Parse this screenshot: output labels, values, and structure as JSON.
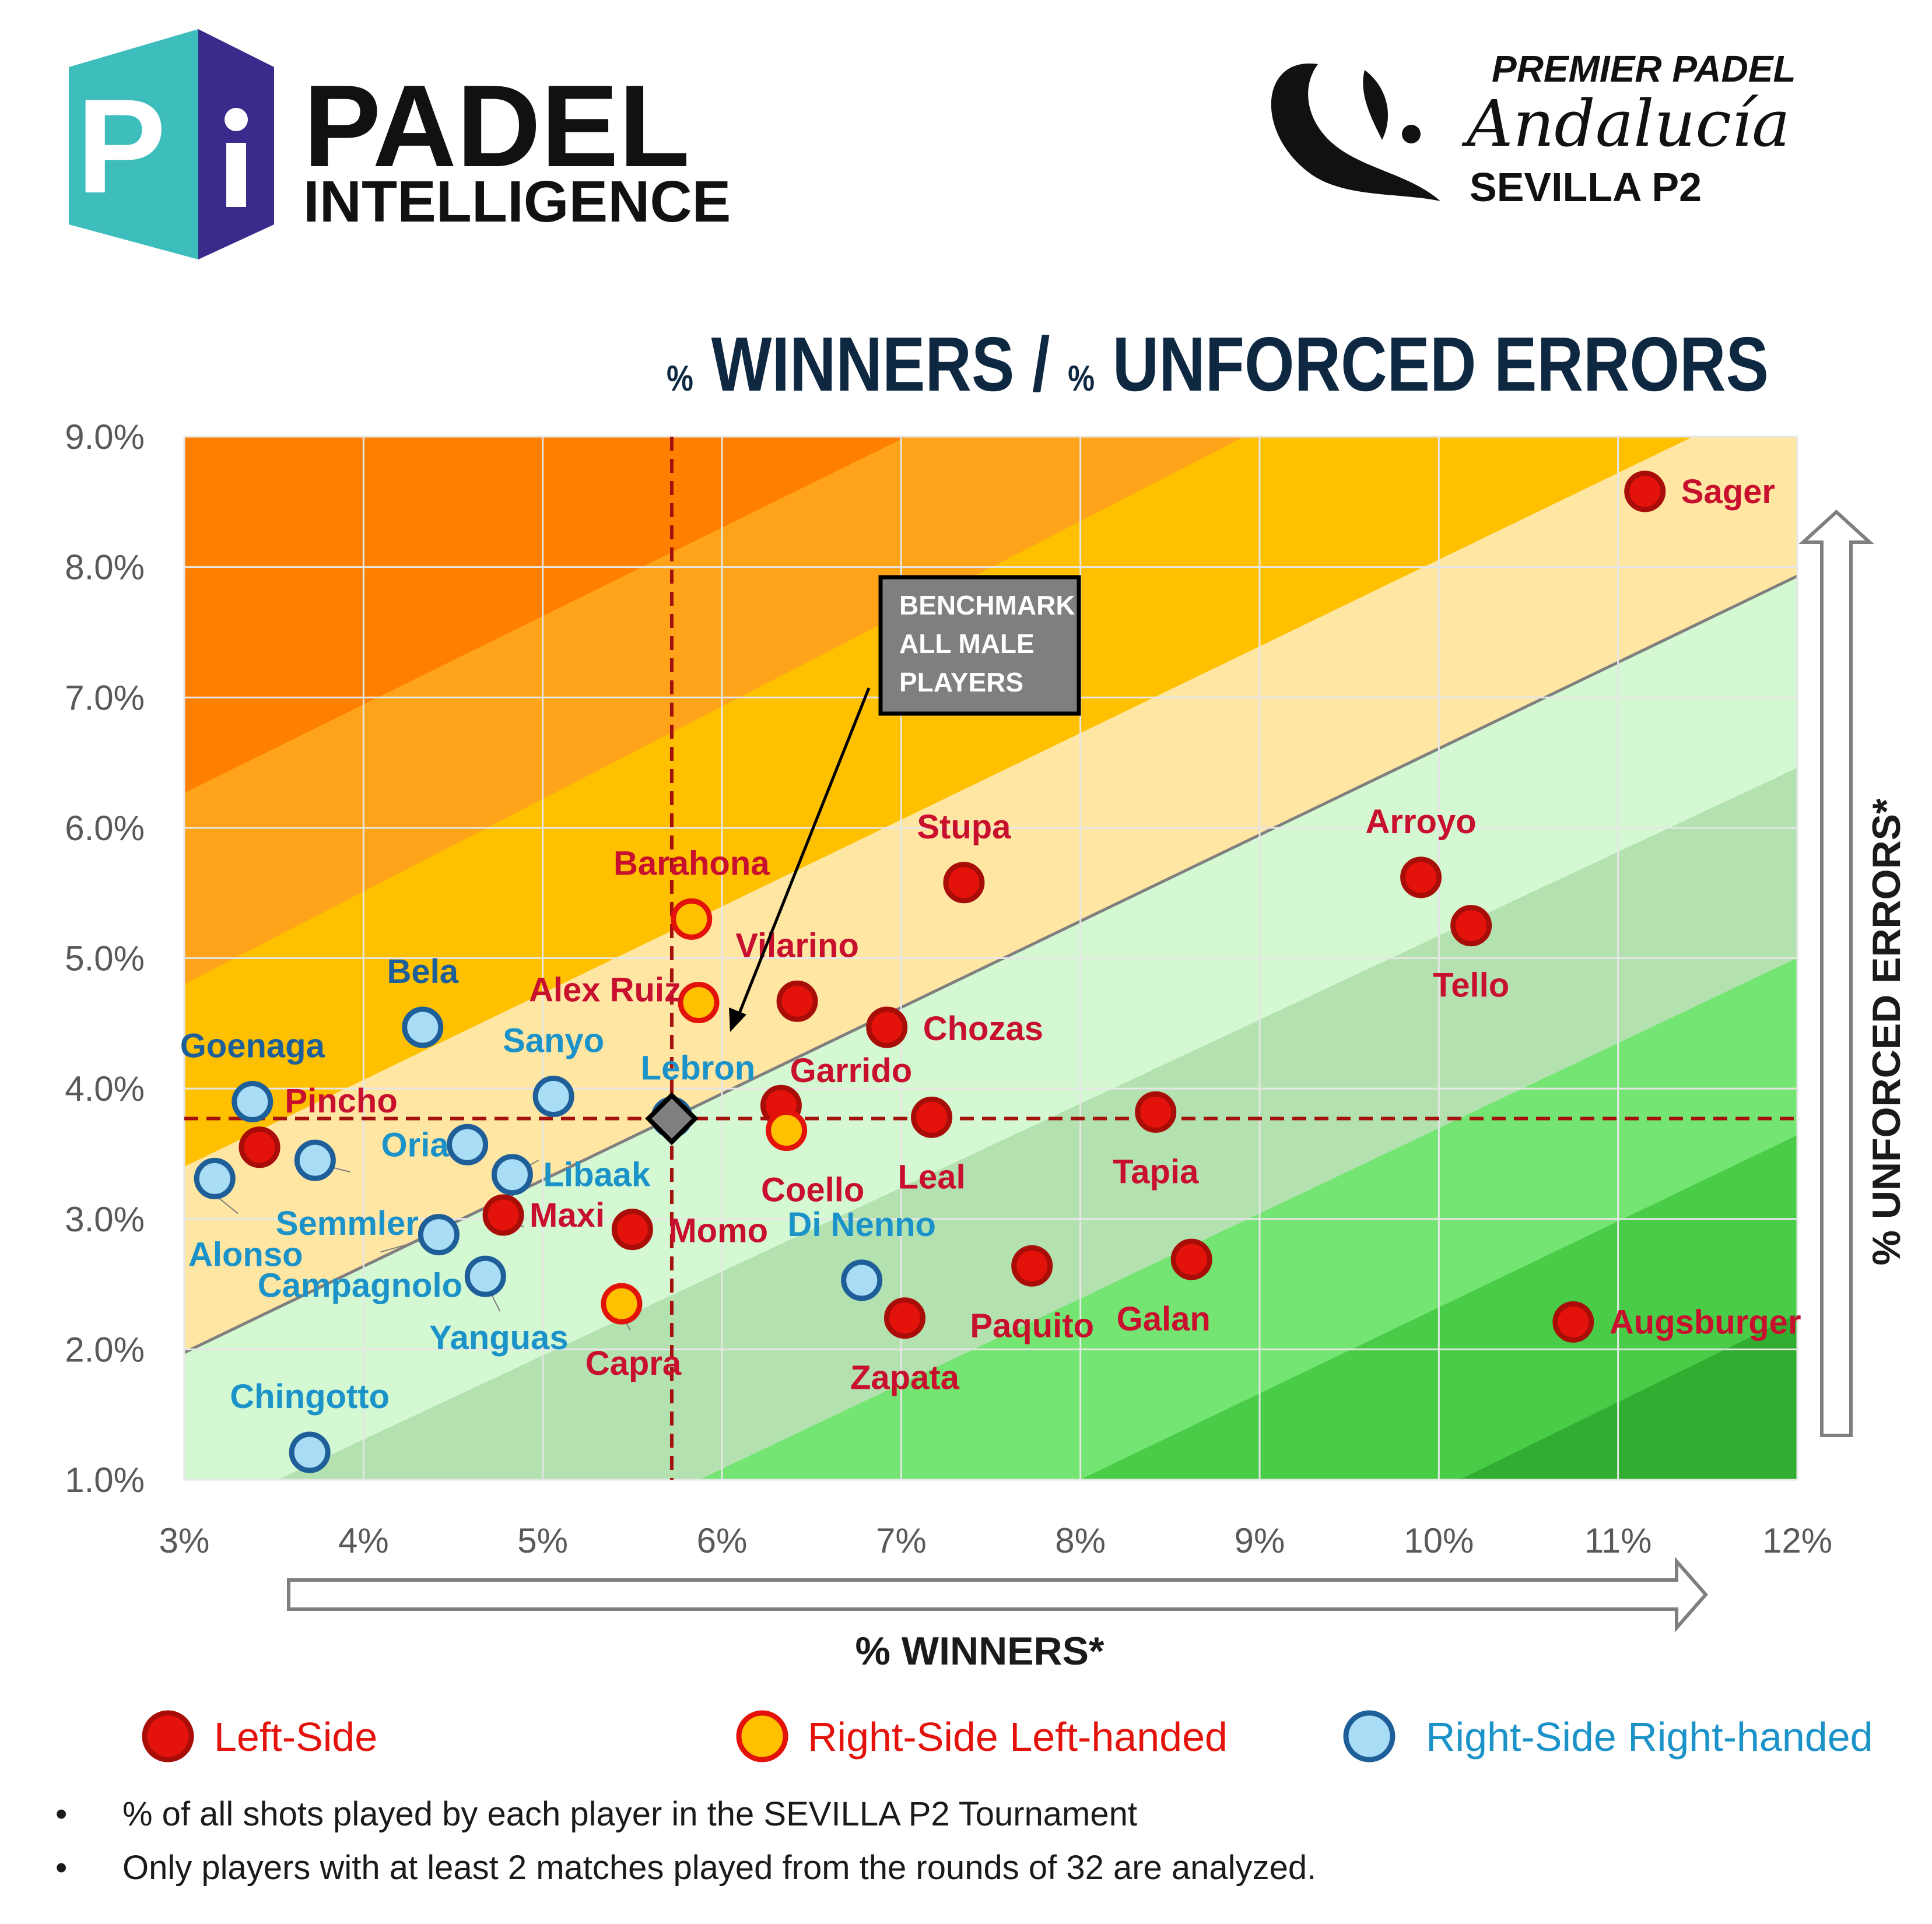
{
  "branding": {
    "logo_letter": "P",
    "brand_line1": "PADEL",
    "brand_line2": "INTELLIGENCE",
    "event_line1": "PREMIER PADEL",
    "event_line2": "Andalucía",
    "event_line3": "SEVILLA P2"
  },
  "title": {
    "pct1": "%",
    "part1": "WINNERS",
    "sep": "/",
    "pct2": "%",
    "part2": "UNFORCED ERRORS"
  },
  "colors": {
    "left_side": "#e3120b",
    "right_left_fill": "#ffc000",
    "right_left_stroke": "#e3120b",
    "right_right_fill": "#a9dcf5",
    "right_right_stroke": "#1f5f99",
    "label_red": "#c8102e",
    "label_blue": "#1b93c9",
    "benchmark_line": "#a3120c",
    "title_navy": "#0e2841"
  },
  "chart_data": {
    "type": "scatter",
    "xlabel": "% WINNERS*",
    "ylabel": "% UNFORCED ERRORS*",
    "xlim": [
      3,
      12
    ],
    "ylim": [
      1,
      9
    ],
    "x_ticks": [
      {
        "v": 3,
        "label": "3%"
      },
      {
        "v": 4,
        "label": "4%"
      },
      {
        "v": 5,
        "label": "5%"
      },
      {
        "v": 6,
        "label": "6%"
      },
      {
        "v": 7,
        "label": "7%"
      },
      {
        "v": 8,
        "label": "8%"
      },
      {
        "v": 9,
        "label": "9%"
      },
      {
        "v": 10,
        "label": "10%"
      },
      {
        "v": 11,
        "label": "11%"
      },
      {
        "v": 12,
        "label": "12%"
      }
    ],
    "y_ticks": [
      {
        "v": 1,
        "label": "1.0%"
      },
      {
        "v": 2,
        "label": "2.0%"
      },
      {
        "v": 3,
        "label": "3.0%"
      },
      {
        "v": 4,
        "label": "4.0%"
      },
      {
        "v": 5,
        "label": "5.0%"
      },
      {
        "v": 6,
        "label": "6.0%"
      },
      {
        "v": 7,
        "label": "7.0%"
      },
      {
        "v": 8,
        "label": "8.0%"
      },
      {
        "v": 9,
        "label": "9.0%"
      }
    ],
    "grid": true,
    "benchmark": {
      "x": 5.72,
      "y": 3.77,
      "label": [
        "BENCHMARK",
        "ALL MALE",
        "PLAYERS"
      ]
    },
    "legend": [
      {
        "key": "left",
        "label": "Left-Side"
      },
      {
        "key": "rightL",
        "label": "Right-Side Left-handed"
      },
      {
        "key": "rightR",
        "label": "Right-Side Right-handed"
      }
    ],
    "points": [
      {
        "name": "Sager",
        "group": "left",
        "x": 11.15,
        "y": 8.58
      },
      {
        "name": "Arroyo",
        "group": "left",
        "x": 9.9,
        "y": 5.62
      },
      {
        "name": "Tello",
        "group": "left",
        "x": 10.18,
        "y": 5.25
      },
      {
        "name": "Stupa",
        "group": "left",
        "x": 7.35,
        "y": 5.58
      },
      {
        "name": "Vilarino",
        "group": "left",
        "x": 6.42,
        "y": 4.67
      },
      {
        "name": "Chozas",
        "group": "left",
        "x": 6.92,
        "y": 4.47
      },
      {
        "name": "Garrido",
        "group": "left",
        "x": 6.33,
        "y": 3.87
      },
      {
        "name": "Leal",
        "group": "left",
        "x": 7.17,
        "y": 3.78
      },
      {
        "name": "Tapia",
        "group": "left",
        "x": 8.42,
        "y": 3.82
      },
      {
        "name": "Pincho",
        "group": "left",
        "x": 3.42,
        "y": 3.55
      },
      {
        "name": "Maxi",
        "group": "left",
        "x": 4.78,
        "y": 3.03
      },
      {
        "name": "Momo",
        "group": "left",
        "x": 5.5,
        "y": 2.92
      },
      {
        "name": "Paquito",
        "group": "left",
        "x": 7.73,
        "y": 2.64
      },
      {
        "name": "Galan",
        "group": "left",
        "x": 8.62,
        "y": 2.69
      },
      {
        "name": "Zapata",
        "group": "left",
        "x": 7.02,
        "y": 2.24
      },
      {
        "name": "Augsburger",
        "group": "left",
        "x": 10.75,
        "y": 2.21
      },
      {
        "name": "Barahona",
        "group": "rightL",
        "x": 5.83,
        "y": 5.3
      },
      {
        "name": "Alex Ruiz",
        "group": "rightL",
        "x": 5.87,
        "y": 4.66
      },
      {
        "name": "Coello",
        "group": "rightL",
        "x": 6.36,
        "y": 3.68
      },
      {
        "name": "Capra",
        "group": "rightL",
        "x": 5.44,
        "y": 2.35
      },
      {
        "name": "Bela",
        "group": "rightR",
        "x": 4.33,
        "y": 4.47
      },
      {
        "name": "Goenaga",
        "group": "rightR",
        "x": 3.38,
        "y": 3.9
      },
      {
        "name": "Sanyo",
        "group": "rightR",
        "x": 5.06,
        "y": 3.94
      },
      {
        "name": "Lebron",
        "group": "rightR",
        "x": 5.72,
        "y": 3.78
      },
      {
        "name": "Oria",
        "group": "rightR",
        "x": 4.58,
        "y": 3.57
      },
      {
        "name": "Libaak",
        "group": "rightR",
        "x": 4.83,
        "y": 3.34
      },
      {
        "name": "Semmler",
        "group": "rightR",
        "x": 3.73,
        "y": 3.45
      },
      {
        "name": "Alonso",
        "group": "rightR",
        "x": 3.17,
        "y": 3.31
      },
      {
        "name": "Campagnolo",
        "group": "rightR",
        "x": 4.42,
        "y": 2.88
      },
      {
        "name": "Yanguas",
        "group": "rightR",
        "x": 4.68,
        "y": 2.56
      },
      {
        "name": "Di Nenno",
        "group": "rightR",
        "x": 6.78,
        "y": 2.53
      },
      {
        "name": "Chingotto",
        "group": "rightR",
        "x": 3.7,
        "y": 1.21
      }
    ]
  },
  "notes": [
    "% of all shots played by each player in the SEVILLA P2 Tournament",
    "Only players with at least 2 matches played from the rounds of 32 are analyzed."
  ],
  "bullet": "•"
}
